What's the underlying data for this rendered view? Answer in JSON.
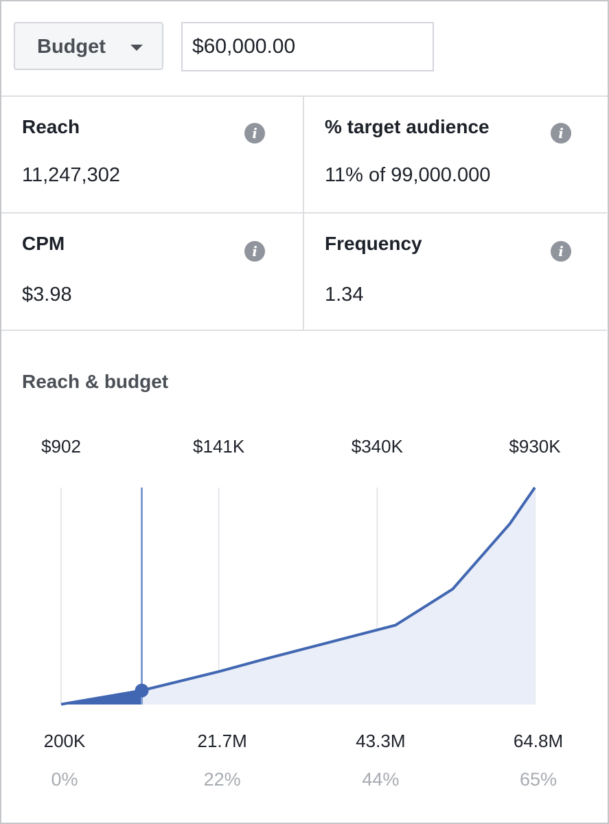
{
  "budget_selector": {
    "label": "Budget"
  },
  "budget_input": {
    "value": "$60,000.00"
  },
  "metrics": [
    {
      "label": "Reach",
      "value": "11,247,302"
    },
    {
      "label": "% target audience",
      "value": "11% of 99,000.000"
    },
    {
      "label": "CPM",
      "value": "$3.98"
    },
    {
      "label": "Frequency",
      "value": "1.34"
    }
  ],
  "info_icon_glyph": "i",
  "chart_data": {
    "type": "area",
    "title": "Reach & budget",
    "budget_tick_labels": [
      "$902",
      "$141K",
      "$340K",
      "$930K"
    ],
    "reach_tick_labels": [
      "200K",
      "21.7M",
      "43.3M",
      "64.8M"
    ],
    "percent_tick_labels": [
      "0%",
      "22%",
      "44%",
      "65%"
    ],
    "reach_axis_millions": [
      0.2,
      21.7,
      43.3,
      64.8
    ],
    "xlim": [
      0.2,
      64.8
    ],
    "ylim": [
      0,
      930
    ],
    "series": [
      {
        "x_reach_millions": [
          0.2,
          11.2,
          21.7,
          28.6,
          45.8,
          53.6,
          61.4,
          64.8
        ],
        "y_budget_thousands": [
          0.9,
          60,
          141,
          200,
          340,
          495,
          775,
          930
        ]
      }
    ],
    "selected_point": {
      "x_reach_millions": 11.2,
      "y_budget_thousands": 60
    },
    "colors": {
      "line": "#4267b2",
      "fill": "#e9eef8",
      "grid": "#e4e6eb",
      "marker_line": "#7e9bd2"
    },
    "grid": true
  }
}
